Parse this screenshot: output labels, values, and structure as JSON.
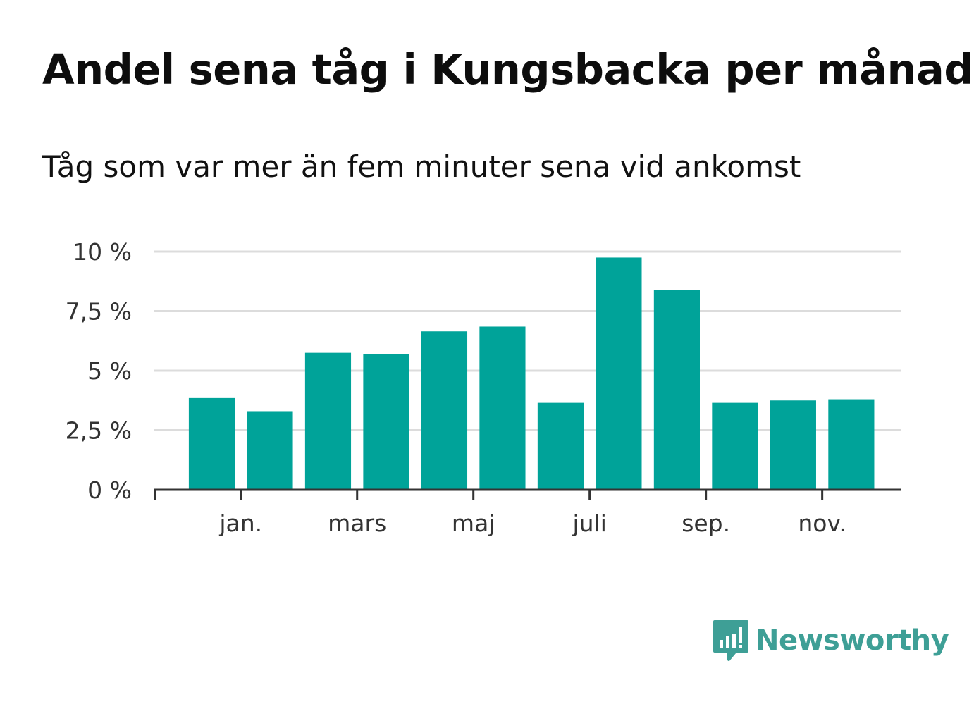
{
  "header": {
    "title": "Andel sena tåg i Kungsbacka per månad",
    "subtitle": "Tåg som var mer än fem minuter sena vid ankomst"
  },
  "chart_data": {
    "type": "bar",
    "title": "Andel sena tåg i Kungsbacka per månad",
    "subtitle": "Tåg som var mer än fem minuter sena vid ankomst",
    "xlabel": "",
    "ylabel": "",
    "ylim": [
      0,
      10
    ],
    "grid": true,
    "y_ticks": [
      {
        "value": 0,
        "label": "0 %"
      },
      {
        "value": 2.5,
        "label": "2,5 %"
      },
      {
        "value": 5,
        "label": "5 %"
      },
      {
        "value": 7.5,
        "label": "7,5 %"
      },
      {
        "value": 10,
        "label": "10 %"
      }
    ],
    "x_ticks": [
      {
        "index": 1,
        "label": "jan."
      },
      {
        "index": 3,
        "label": "mars"
      },
      {
        "index": 5,
        "label": "maj"
      },
      {
        "index": 7,
        "label": "juli"
      },
      {
        "index": 9,
        "label": "sep."
      },
      {
        "index": 11,
        "label": "nov."
      }
    ],
    "values": [
      3.85,
      3.3,
      5.75,
      5.7,
      6.65,
      6.85,
      3.65,
      9.75,
      8.4,
      3.65,
      3.75,
      3.8
    ],
    "bar_color": "#00a399"
  },
  "logo": {
    "name": "Newsworthy",
    "icon": "newsworthy-bar-chart-icon",
    "color": "#3e9f96"
  }
}
